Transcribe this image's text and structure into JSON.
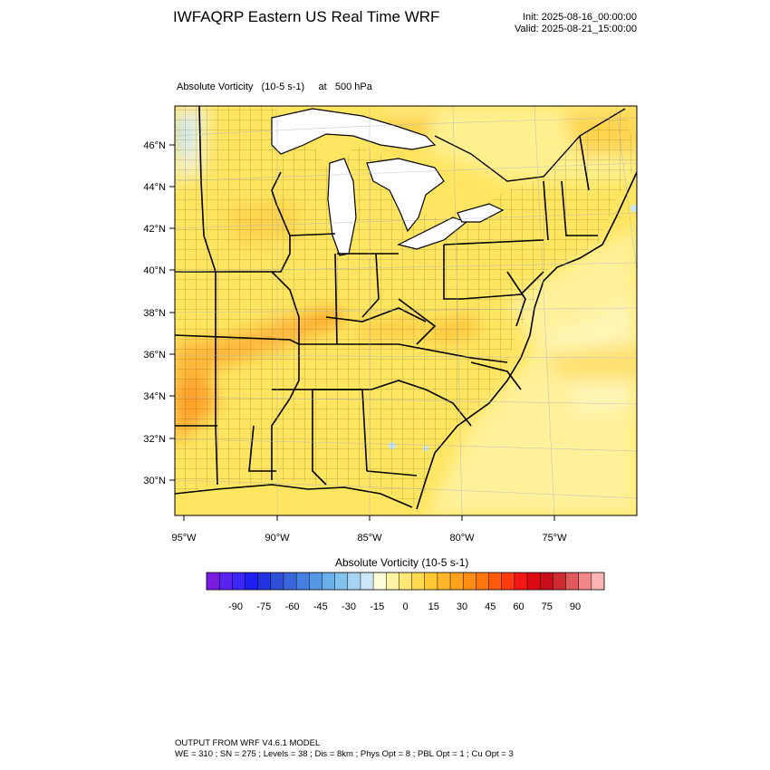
{
  "header": {
    "title": "IWFAQRP Eastern US Real Time WRF",
    "init": "Init: 2025-08-16_00:00:00",
    "valid": "Valid: 2025-08-21_15:00:00"
  },
  "plot": {
    "subtitle": "Absolute Vorticity   (10-5 s-1)     at   500 hPa",
    "lat_labels": [
      "46°N",
      "44°N",
      "42°N",
      "40°N",
      "38°N",
      "36°N",
      "34°N",
      "32°N",
      "30°N"
    ],
    "lon_labels": [
      "95°W",
      "90°W",
      "85°W",
      "80°W",
      "75°W"
    ]
  },
  "colorbar": {
    "label": "Absolute Vorticity  (10-5 s-1)",
    "tick_labels": [
      "-90",
      "-75",
      "-60",
      "-45",
      "-30",
      "-15",
      "0",
      "15",
      "30",
      "45",
      "60",
      "75",
      "90"
    ],
    "colors": [
      "#7a1de0",
      "#5a22f0",
      "#3c25f5",
      "#1e1ef0",
      "#2433e0",
      "#2f4fd8",
      "#3a68da",
      "#4580e0",
      "#5598e6",
      "#6aaeea",
      "#84c2ee",
      "#a6d4f2",
      "#cbe6f6",
      "#fdfcd8",
      "#fff4a6",
      "#ffe877",
      "#ffda4e",
      "#ffc935",
      "#ffb728",
      "#ffa31c",
      "#ff8e12",
      "#ff760d",
      "#ff5a0c",
      "#ff3a10",
      "#f21616",
      "#dd0a14",
      "#c70e1a",
      "#cf2c32",
      "#e0595d",
      "#f0888a",
      "#fbb3b4"
    ]
  },
  "footer": {
    "line1": "OUTPUT FROM WRF V4.6.1 MODEL",
    "line2": "WE = 310 ; SN = 275 ; Levels = 38 ; Dis = 8km ; Phys Opt = 8 ; PBL Opt = 1 ; Cu Opt = 3"
  }
}
